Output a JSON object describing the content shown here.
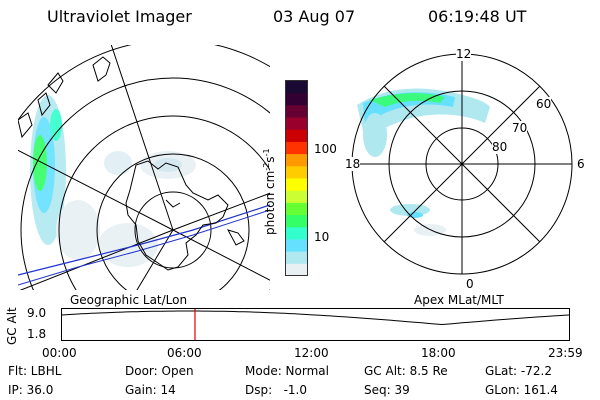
{
  "header": {
    "instrument": "Ultraviolet Imager",
    "date": "03 Aug 07",
    "time": "06:19:48 UT"
  },
  "colorbar": {
    "label": "photon cm",
    "exp1": "-2",
    "mid": "s",
    "exp2": "-1",
    "ticks": [
      "100",
      "10"
    ],
    "colors": [
      "#1a0a33",
      "#330033",
      "#660033",
      "#99002b",
      "#cc0000",
      "#ff3300",
      "#ff9900",
      "#ffcc00",
      "#ffff00",
      "#ccff33",
      "#66ff33",
      "#33ff66",
      "#33ffcc",
      "#66e0ff",
      "#b0e8f0",
      "#e8f0f4"
    ]
  },
  "left_map": {
    "label": "Geographic Lat/Lon"
  },
  "right_map": {
    "label": "Apex MLat/MLT",
    "mlt_labels": {
      "top": "12",
      "left": "18",
      "right": "6",
      "bottom": "0"
    },
    "mlat_labels": [
      "60",
      "70",
      "80"
    ]
  },
  "altitude_plot": {
    "ylabel": "GC Alt",
    "ymax": "9.0",
    "ymin": "1.8",
    "xticks": [
      "00:00",
      "06:00",
      "12:00",
      "18:00",
      "23:59"
    ],
    "marker_hour": 6.33
  },
  "status": {
    "flt": "Flt: LBHL",
    "ip": "IP: 36.0",
    "door": "Door: Open",
    "gain": "Gain: 14",
    "mode": "Mode: Normal",
    "dsp": "Dsp:   -1.0",
    "gc_alt": "GC Alt: 8.5 Re",
    "seq": "Seq: 39",
    "glat": "GLat: -72.2",
    "glon": "GLon: 161.4"
  }
}
